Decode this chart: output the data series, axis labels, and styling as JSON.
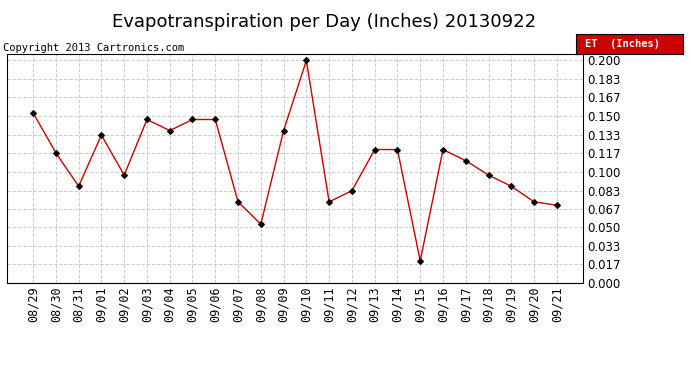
{
  "title": "Evapotranspiration per Day (Inches) 20130922",
  "copyright": "Copyright 2013 Cartronics.com",
  "legend_label": "ET  (Inches)",
  "dates": [
    "08/29",
    "08/30",
    "08/31",
    "09/01",
    "09/02",
    "09/03",
    "09/04",
    "09/05",
    "09/06",
    "09/07",
    "09/08",
    "09/09",
    "09/10",
    "09/11",
    "09/12",
    "09/13",
    "09/14",
    "09/15",
    "09/16",
    "09/17",
    "09/18",
    "09/19",
    "09/20",
    "09/21"
  ],
  "values": [
    0.153,
    0.117,
    0.087,
    0.133,
    0.097,
    0.147,
    0.137,
    0.147,
    0.147,
    0.073,
    0.053,
    0.137,
    0.2,
    0.073,
    0.083,
    0.12,
    0.12,
    0.02,
    0.12,
    0.11,
    0.097,
    0.087,
    0.073,
    0.07
  ],
  "ylim": [
    0.0,
    0.2055
  ],
  "yticks": [
    0.0,
    0.017,
    0.033,
    0.05,
    0.067,
    0.083,
    0.1,
    0.117,
    0.133,
    0.15,
    0.167,
    0.183,
    0.2
  ],
  "line_color": "#cc0000",
  "marker_color": "#000000",
  "legend_bg": "#cc0000",
  "legend_text_color": "#ffffff",
  "background_color": "#ffffff",
  "plot_bg": "#ffffff",
  "grid_color": "#cccccc",
  "title_fontsize": 13,
  "copyright_fontsize": 7.5,
  "tick_fontsize": 8.5,
  "border_color": "#000000"
}
